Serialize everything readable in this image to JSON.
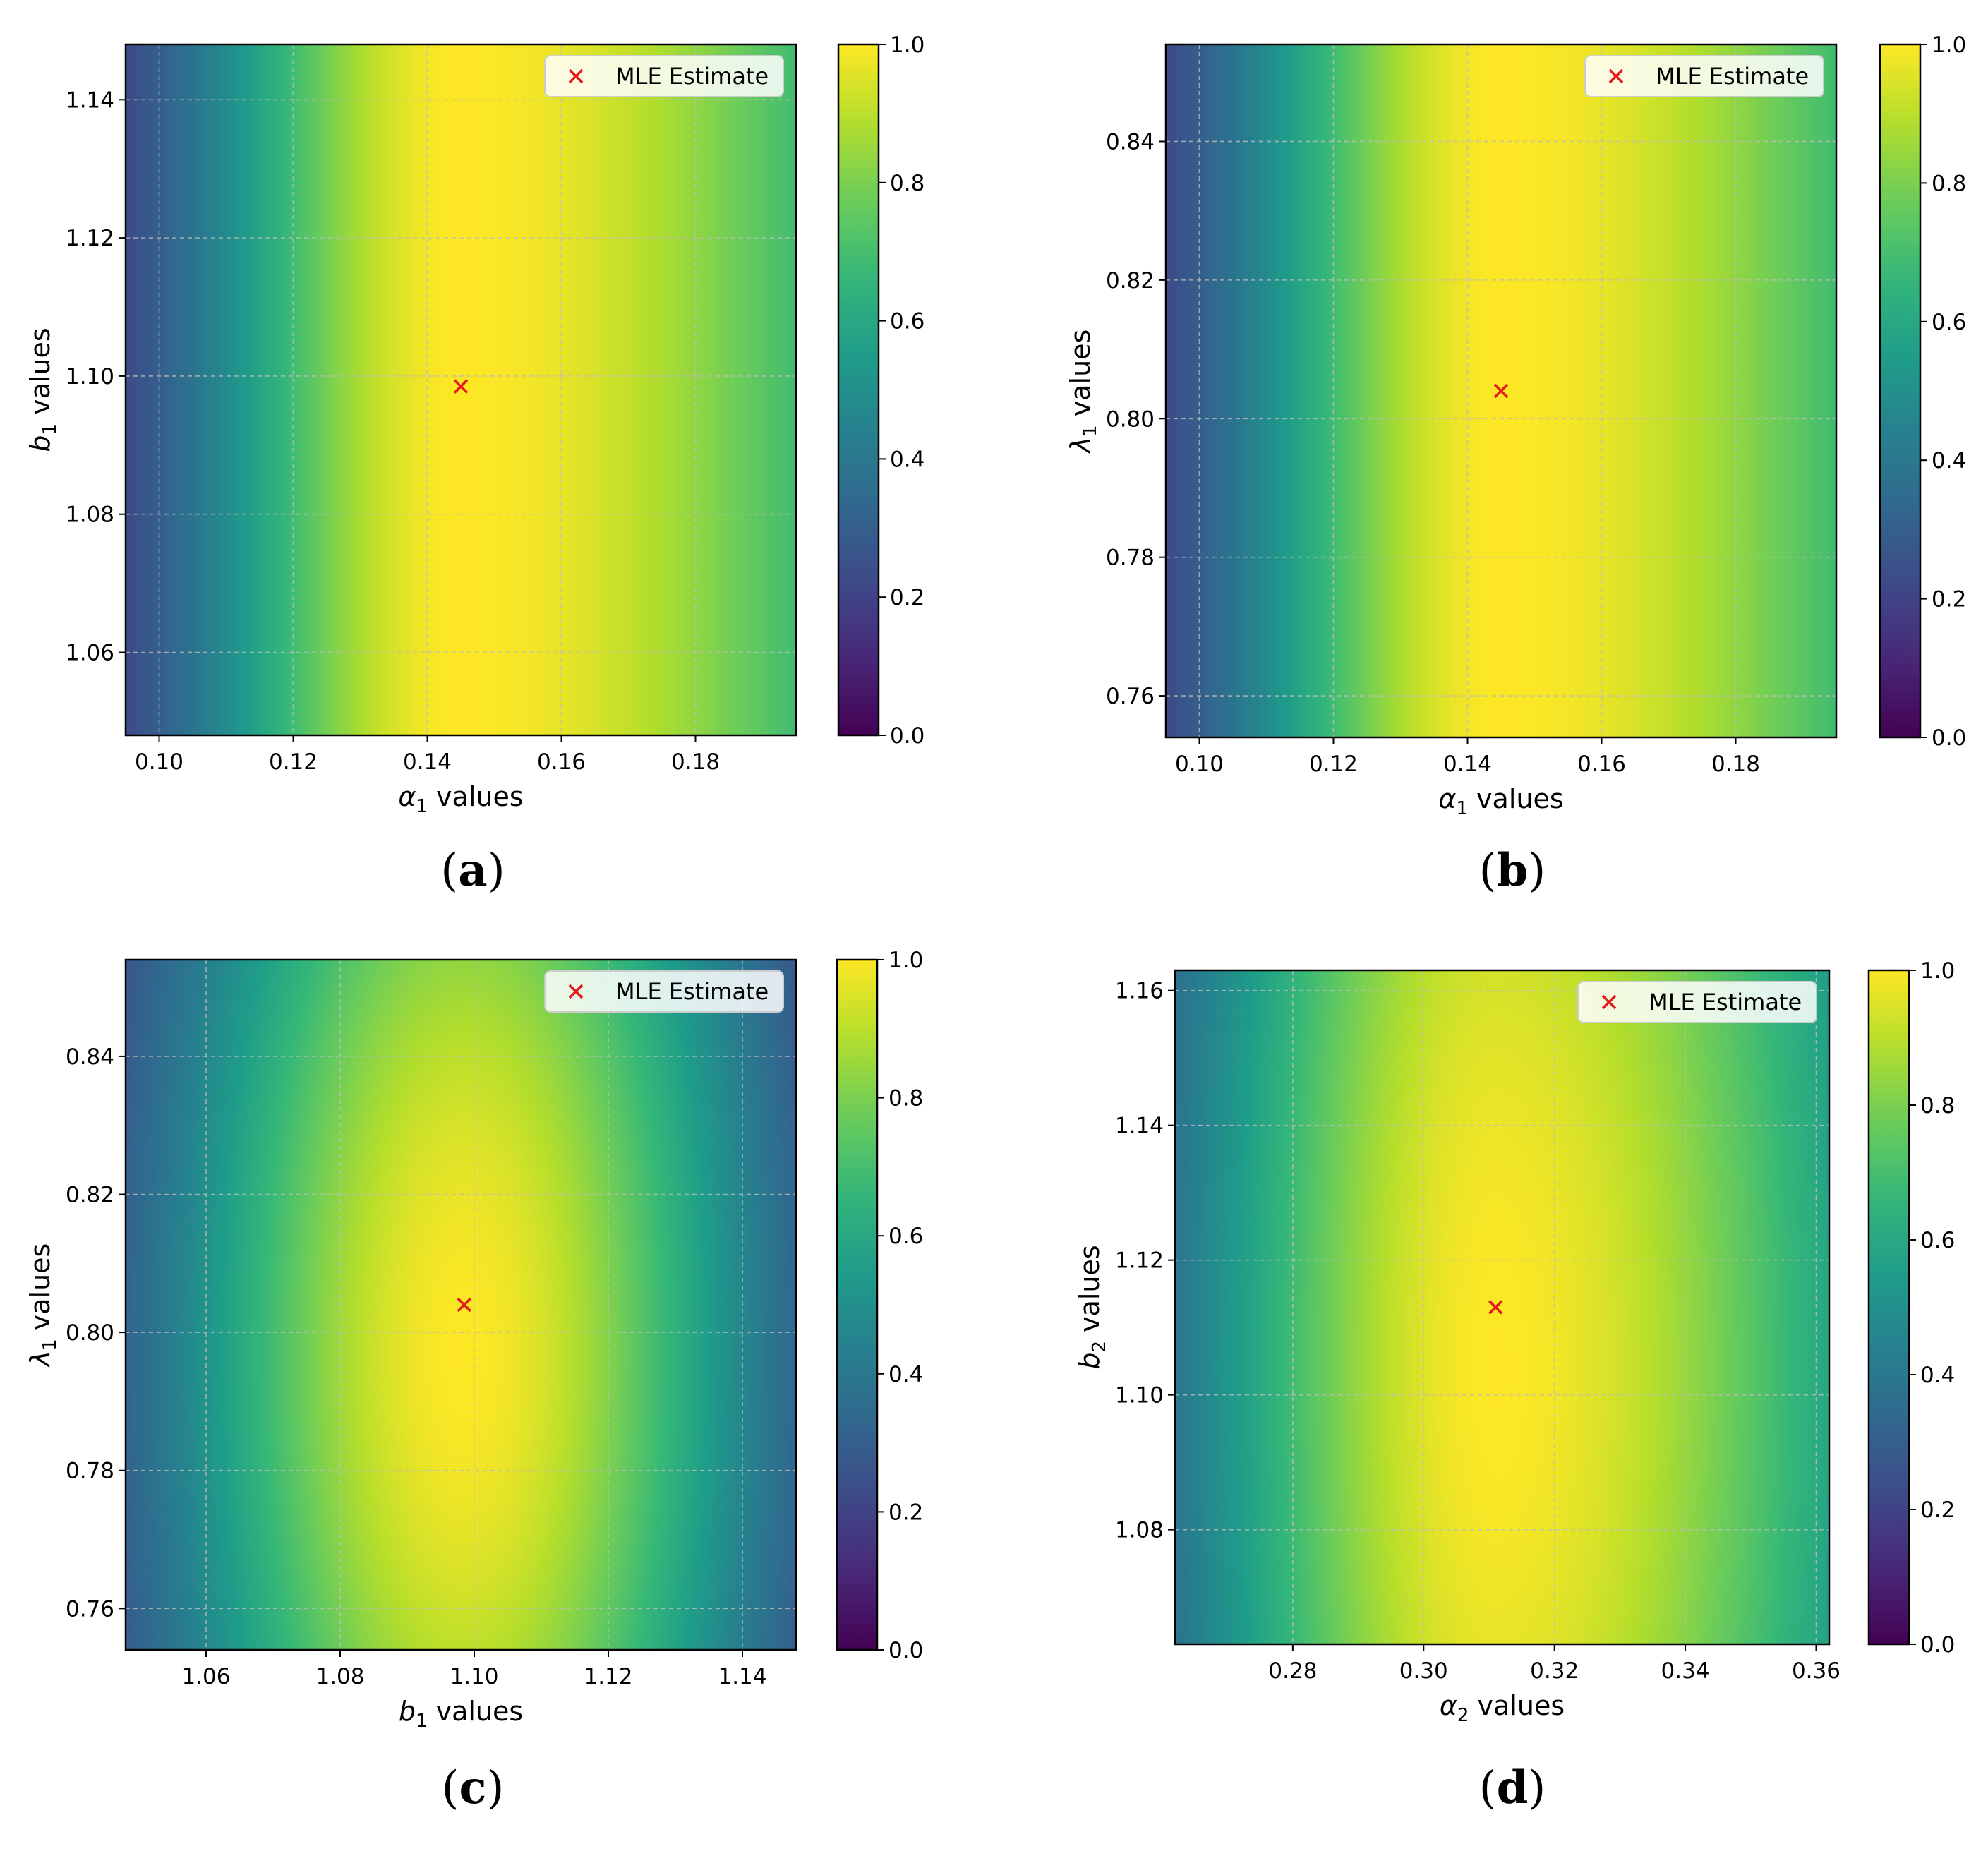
{
  "figure": {
    "panels": [
      {
        "label": "a",
        "caption_open": "(",
        "caption_close": ")",
        "legend_label": "MLE Estimate",
        "xlabel_sym": "α",
        "xlabel_sub": "1",
        "xlabel_rest": " values",
        "ylabel_sym": "b",
        "ylabel_sub": "1",
        "ylabel_rest": " values"
      },
      {
        "label": "b",
        "caption_open": "(",
        "caption_close": ")",
        "legend_label": "MLE Estimate",
        "xlabel_sym": "α",
        "xlabel_sub": "1",
        "xlabel_rest": " values",
        "ylabel_sym": "λ",
        "ylabel_sub": "1",
        "ylabel_rest": " values"
      },
      {
        "label": "c",
        "caption_open": "(",
        "caption_close": ")",
        "legend_label": "MLE Estimate",
        "xlabel_sym": "b",
        "xlabel_sub": "1",
        "xlabel_rest": " values",
        "ylabel_sym": "λ",
        "ylabel_sub": "1",
        "ylabel_rest": " values"
      },
      {
        "label": "d",
        "caption_open": "(",
        "caption_close": ")",
        "legend_label": "MLE Estimate",
        "xlabel_sym": "α",
        "xlabel_sub": "2",
        "xlabel_rest": " values",
        "ylabel_sym": "b",
        "ylabel_sub": "2",
        "ylabel_rest": " values"
      }
    ]
  },
  "chart_data": [
    {
      "type": "heatmap",
      "colormap": "viridis",
      "xlim": [
        0.095,
        0.195
      ],
      "ylim": [
        1.048,
        1.148
      ],
      "xticks": [
        "0.10",
        "0.12",
        "0.14",
        "0.16",
        "0.18"
      ],
      "yticks": [
        "1.06",
        "1.08",
        "1.10",
        "1.12",
        "1.14"
      ],
      "colorbar_range": [
        0.0,
        1.0
      ],
      "colorbar_ticks": [
        "0.0",
        "0.2",
        "0.4",
        "0.6",
        "0.8",
        "1.0"
      ],
      "grid": true,
      "legend_position": "top-right",
      "mle_estimate": {
        "x": 0.145,
        "y": 1.0985,
        "marker": "x",
        "color": "#e41a1c"
      },
      "surface": {
        "kind": "vertical-band",
        "center_x": 0.145,
        "sigma_x_low": 0.029,
        "sigma_x_high": 0.058
      }
    },
    {
      "type": "heatmap",
      "colormap": "viridis",
      "xlim": [
        0.095,
        0.195
      ],
      "ylim": [
        0.754,
        0.854
      ],
      "xticks": [
        "0.10",
        "0.12",
        "0.14",
        "0.16",
        "0.18"
      ],
      "yticks": [
        "0.76",
        "0.78",
        "0.80",
        "0.82",
        "0.84"
      ],
      "colorbar_range": [
        0.0,
        1.0
      ],
      "colorbar_ticks": [
        "0.0",
        "0.2",
        "0.4",
        "0.6",
        "0.8",
        "1.0"
      ],
      "grid": true,
      "legend_position": "top-right",
      "mle_estimate": {
        "x": 0.145,
        "y": 0.804,
        "marker": "x",
        "color": "#e41a1c"
      },
      "surface": {
        "kind": "vertical-band",
        "center_x": 0.145,
        "sigma_x_low": 0.029,
        "sigma_x_high": 0.058
      }
    },
    {
      "type": "heatmap",
      "colormap": "viridis",
      "xlim": [
        1.048,
        1.148
      ],
      "ylim": [
        0.754,
        0.854
      ],
      "xticks": [
        "1.06",
        "1.08",
        "1.10",
        "1.12",
        "1.14"
      ],
      "yticks": [
        "0.76",
        "0.78",
        "0.80",
        "0.82",
        "0.84"
      ],
      "colorbar_range": [
        0.0,
        1.0
      ],
      "colorbar_ticks": [
        "0.0",
        "0.2",
        "0.4",
        "0.6",
        "0.8",
        "1.0"
      ],
      "grid": true,
      "legend_position": "top-right",
      "mle_estimate": {
        "x": 1.0985,
        "y": 0.804,
        "marker": "x",
        "color": "#e41a1c"
      },
      "surface": {
        "kind": "ellipse",
        "center_x": 1.0985,
        "center_y": 0.797,
        "sigma_x": 0.0335,
        "sigma_y": 0.095
      }
    },
    {
      "type": "heatmap",
      "colormap": "viridis",
      "xlim": [
        0.262,
        0.362
      ],
      "ylim": [
        1.063,
        1.163
      ],
      "xticks": [
        "0.28",
        "0.30",
        "0.32",
        "0.34",
        "0.36"
      ],
      "yticks": [
        "1.08",
        "1.10",
        "1.12",
        "1.14",
        "1.16"
      ],
      "colorbar_range": [
        0.0,
        1.0
      ],
      "colorbar_ticks": [
        "0.0",
        "0.2",
        "0.4",
        "0.6",
        "0.8",
        "1.0"
      ],
      "grid": true,
      "legend_position": "top-right",
      "mle_estimate": {
        "x": 0.311,
        "y": 1.113,
        "marker": "x",
        "color": "#e41a1c"
      },
      "surface": {
        "kind": "ellipse",
        "center_x": 0.311,
        "center_y": 1.104,
        "sigma_x_low": 0.036,
        "sigma_x_high": 0.05,
        "sigma_y": 0.16
      }
    }
  ]
}
